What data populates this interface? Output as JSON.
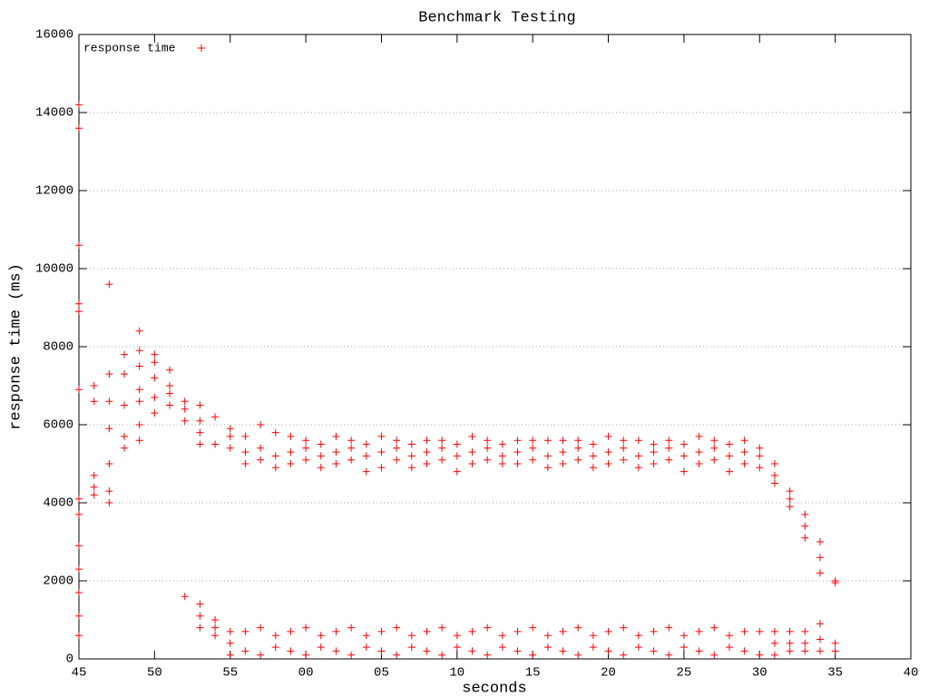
{
  "chart_data": {
    "type": "scatter",
    "title": "Benchmark Testing",
    "x_label": "seconds",
    "y_label": "response time (ms)",
    "xlim": [
      0,
      55
    ],
    "ylim": [
      0,
      16000
    ],
    "xticks": [
      {
        "value": 0,
        "label": "45"
      },
      {
        "value": 5,
        "label": "50"
      },
      {
        "value": 10,
        "label": "55"
      },
      {
        "value": 15,
        "label": "00"
      },
      {
        "value": 20,
        "label": "05"
      },
      {
        "value": 25,
        "label": "10"
      },
      {
        "value": 30,
        "label": "15"
      },
      {
        "value": 35,
        "label": "20"
      },
      {
        "value": 40,
        "label": "25"
      },
      {
        "value": 45,
        "label": "30"
      },
      {
        "value": 50,
        "label": "35"
      },
      {
        "value": 55,
        "label": "40"
      }
    ],
    "yticks": [
      0,
      2000,
      4000,
      6000,
      8000,
      10000,
      12000,
      14000,
      16000
    ],
    "grid": "y",
    "legend": "top-left",
    "series": [
      {
        "name": "response time",
        "color": "#ff0000",
        "x": [
          0,
          0,
          0,
          0,
          0,
          0,
          0,
          0,
          0,
          0,
          0,
          0,
          0,
          1,
          1,
          1,
          1,
          1,
          2,
          2,
          2,
          2,
          2,
          2,
          2,
          3,
          3,
          3,
          3,
          3,
          4,
          4,
          4,
          4,
          4,
          4,
          4,
          5,
          5,
          5,
          5,
          5,
          6,
          6,
          6,
          6,
          7,
          7,
          7,
          7,
          8,
          8,
          8,
          8,
          8,
          8,
          8,
          9,
          9,
          9,
          9,
          9,
          10,
          10,
          10,
          10,
          10,
          10,
          11,
          11,
          11,
          11,
          11,
          12,
          12,
          12,
          12,
          12,
          13,
          13,
          13,
          13,
          13,
          14,
          14,
          14,
          14,
          14,
          15,
          15,
          15,
          15,
          15,
          16,
          16,
          16,
          16,
          16,
          17,
          17,
          17,
          17,
          17,
          18,
          18,
          18,
          18,
          18,
          19,
          19,
          19,
          19,
          19,
          20,
          20,
          20,
          20,
          20,
          21,
          21,
          21,
          21,
          21,
          22,
          22,
          22,
          22,
          22,
          23,
          23,
          23,
          23,
          23,
          24,
          24,
          24,
          24,
          24,
          25,
          25,
          25,
          25,
          25,
          26,
          26,
          26,
          26,
          26,
          27,
          27,
          27,
          27,
          27,
          28,
          28,
          28,
          28,
          28,
          29,
          29,
          29,
          29,
          29,
          30,
          30,
          30,
          30,
          30,
          31,
          31,
          31,
          31,
          31,
          32,
          32,
          32,
          32,
          32,
          33,
          33,
          33,
          33,
          33,
          34,
          34,
          34,
          34,
          34,
          35,
          35,
          35,
          35,
          35,
          36,
          36,
          36,
          36,
          36,
          37,
          37,
          37,
          37,
          37,
          38,
          38,
          38,
          38,
          38,
          39,
          39,
          39,
          39,
          39,
          40,
          40,
          40,
          40,
          40,
          41,
          41,
          41,
          41,
          41,
          42,
          42,
          42,
          42,
          42,
          43,
          43,
          43,
          43,
          43,
          44,
          44,
          44,
          44,
          44,
          45,
          45,
          45,
          45,
          45,
          46,
          46,
          46,
          46,
          46,
          46,
          47,
          47,
          47,
          47,
          47,
          47,
          48,
          48,
          48,
          48,
          48,
          48,
          49,
          49,
          49,
          49,
          49,
          49,
          50,
          50,
          50,
          50
        ],
        "values": [
          14200,
          13600,
          10600,
          9100,
          8900,
          6900,
          4100,
          3700,
          2900,
          2300,
          1700,
          1100,
          600,
          7000,
          6600,
          4700,
          4400,
          4200,
          9600,
          7300,
          6600,
          5900,
          5000,
          4300,
          4000,
          7800,
          7300,
          6500,
          5700,
          5400,
          8400,
          7900,
          7500,
          6900,
          6600,
          6000,
          5600,
          7800,
          7600,
          7200,
          6700,
          6300,
          7400,
          7000,
          6800,
          6500,
          6600,
          6400,
          6100,
          1600,
          6500,
          6100,
          5800,
          5500,
          1400,
          1100,
          800,
          6200,
          5500,
          1000,
          800,
          600,
          5900,
          5700,
          5400,
          700,
          400,
          100,
          5700,
          5300,
          5000,
          700,
          200,
          6000,
          5400,
          5100,
          800,
          100,
          5800,
          5200,
          4900,
          600,
          300,
          5700,
          5300,
          5000,
          700,
          200,
          5600,
          5400,
          5100,
          800,
          100,
          5500,
          5200,
          4900,
          600,
          300,
          5700,
          5300,
          5000,
          700,
          200,
          5600,
          5400,
          5100,
          800,
          100,
          5500,
          5200,
          4800,
          600,
          300,
          5700,
          5300,
          4900,
          700,
          200,
          5600,
          5400,
          5100,
          800,
          100,
          5500,
          5200,
          4900,
          600,
          300,
          5600,
          5300,
          5000,
          700,
          200,
          5600,
          5400,
          5100,
          800,
          100,
          5500,
          5200,
          4800,
          600,
          300,
          5700,
          5300,
          5000,
          700,
          200,
          5600,
          5400,
          5100,
          800,
          100,
          5500,
          5200,
          5000,
          600,
          300,
          5600,
          5300,
          5000,
          700,
          200,
          5600,
          5400,
          5100,
          800,
          100,
          5600,
          5200,
          4900,
          600,
          300,
          5600,
          5300,
          5000,
          700,
          200,
          5600,
          5400,
          5100,
          800,
          100,
          5500,
          5200,
          4900,
          600,
          300,
          5700,
          5300,
          5000,
          700,
          200,
          5600,
          5400,
          5100,
          800,
          100,
          5600,
          5200,
          4900,
          600,
          300,
          5500,
          5300,
          5000,
          700,
          200,
          5600,
          5400,
          5100,
          800,
          100,
          5500,
          5200,
          4800,
          600,
          300,
          5700,
          5300,
          5000,
          700,
          200,
          5600,
          5400,
          5100,
          800,
          100,
          5500,
          5200,
          4800,
          600,
          300,
          5600,
          5300,
          5000,
          700,
          200,
          5400,
          5200,
          4900,
          700,
          100,
          5000,
          4700,
          4500,
          700,
          400,
          100,
          4300,
          4100,
          3900,
          700,
          400,
          200,
          3700,
          3400,
          3100,
          700,
          400,
          200,
          3000,
          2600,
          2200,
          900,
          500,
          200,
          2000,
          1950,
          400,
          200
        ]
      }
    ]
  }
}
